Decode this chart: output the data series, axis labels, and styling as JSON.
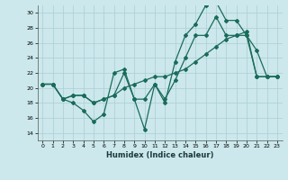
{
  "xlabel": "Humidex (Indice chaleur)",
  "bg_color": "#cce8ec",
  "grid_color": "#aacdd4",
  "line_color": "#1a6b5a",
  "xlim": [
    -0.5,
    23.5
  ],
  "ylim": [
    13,
    31
  ],
  "xticks": [
    0,
    1,
    2,
    3,
    4,
    5,
    6,
    7,
    8,
    9,
    10,
    11,
    12,
    13,
    14,
    15,
    16,
    17,
    18,
    19,
    20,
    21,
    22,
    23
  ],
  "yticks": [
    14,
    16,
    18,
    20,
    22,
    24,
    26,
    28,
    30
  ],
  "line1_x": [
    0,
    1,
    2,
    3,
    4,
    5,
    6,
    7,
    8,
    9,
    10,
    11,
    12,
    13,
    14,
    15,
    16,
    17,
    18,
    19,
    20,
    21,
    22,
    23
  ],
  "line1_y": [
    20.5,
    20.5,
    18.5,
    18.0,
    17.0,
    15.5,
    16.5,
    22.0,
    22.5,
    18.5,
    14.5,
    20.5,
    18.0,
    23.5,
    27.0,
    28.5,
    31.0,
    31.5,
    29.0,
    29.0,
    27.0,
    25.0,
    21.5,
    21.5
  ],
  "line2_x": [
    0,
    1,
    2,
    3,
    4,
    5,
    6,
    7,
    8,
    9,
    10,
    11,
    12,
    13,
    14,
    15,
    16,
    17,
    18,
    19,
    20,
    21,
    22,
    23
  ],
  "line2_y": [
    20.5,
    20.5,
    18.5,
    19.0,
    19.0,
    18.0,
    18.5,
    19.0,
    22.0,
    18.5,
    18.5,
    20.5,
    18.5,
    21.0,
    24.0,
    27.0,
    27.0,
    29.5,
    27.0,
    27.0,
    27.0,
    21.5,
    21.5,
    21.5
  ],
  "line3_x": [
    0,
    1,
    2,
    3,
    4,
    5,
    6,
    7,
    8,
    9,
    10,
    11,
    12,
    13,
    14,
    15,
    16,
    17,
    18,
    19,
    20,
    21,
    22,
    23
  ],
  "line3_y": [
    20.5,
    20.5,
    18.5,
    19.0,
    19.0,
    18.0,
    18.5,
    19.0,
    20.0,
    20.5,
    21.0,
    21.5,
    21.5,
    22.0,
    22.5,
    23.5,
    24.5,
    25.5,
    26.5,
    27.0,
    27.5,
    21.5,
    21.5,
    21.5
  ]
}
